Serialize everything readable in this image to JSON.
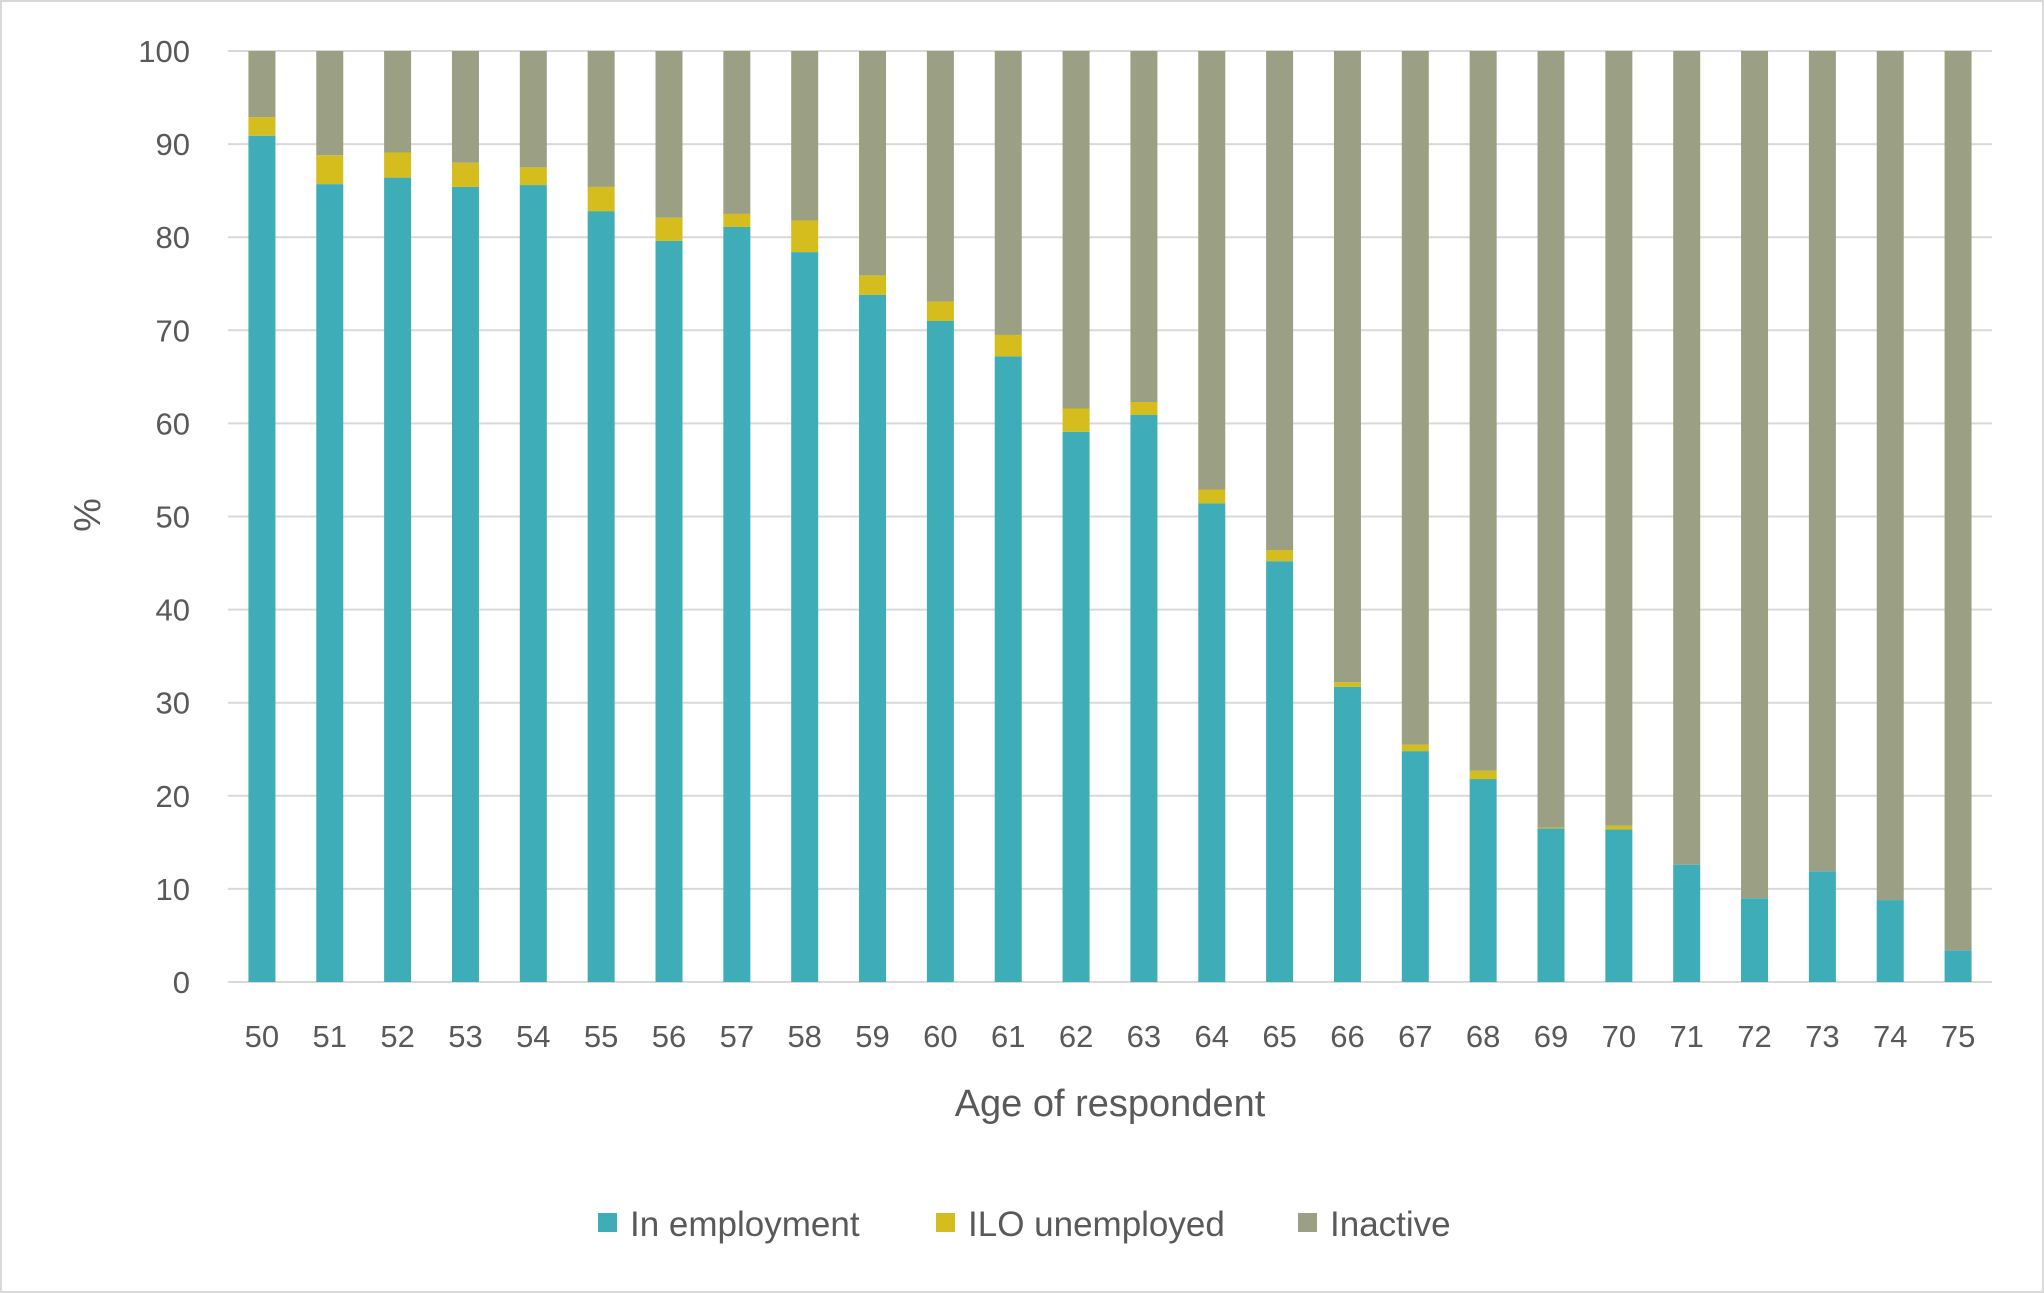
{
  "chart_data": {
    "type": "bar",
    "stacked": true,
    "xlabel": "Age of respondent",
    "ylabel": "%",
    "ylim": [
      0,
      100
    ],
    "yticks": [
      0,
      10,
      20,
      30,
      40,
      50,
      60,
      70,
      80,
      90,
      100
    ],
    "grid": true,
    "legend_position": "bottom",
    "categories": [
      "50",
      "51",
      "52",
      "53",
      "54",
      "55",
      "56",
      "57",
      "58",
      "59",
      "60",
      "61",
      "62",
      "63",
      "64",
      "65",
      "66",
      "67",
      "68",
      "69",
      "70",
      "71",
      "72",
      "73",
      "74",
      "75"
    ],
    "series": [
      {
        "name": "In employment",
        "color": "#3EADB8",
        "values": [
          90.9,
          85.7,
          86.4,
          85.4,
          85.6,
          82.8,
          79.6,
          81.1,
          78.4,
          73.8,
          71.0,
          67.2,
          59.1,
          60.9,
          51.4,
          45.2,
          31.7,
          24.8,
          21.8,
          16.5,
          16.4,
          12.6,
          9.0,
          11.9,
          8.8,
          3.4
        ]
      },
      {
        "name": "ILO unemployed",
        "color": "#D4BD1C",
        "values": [
          2.0,
          3.1,
          2.7,
          2.6,
          1.9,
          2.6,
          2.5,
          1.4,
          3.4,
          2.1,
          2.1,
          2.3,
          2.5,
          1.4,
          1.5,
          1.2,
          0.5,
          0.7,
          0.9,
          0.1,
          0.4,
          0,
          0,
          0,
          0,
          0
        ]
      },
      {
        "name": "Inactive",
        "color": "#9BA084",
        "values": [
          7.1,
          11.2,
          10.9,
          12.0,
          12.5,
          14.6,
          17.9,
          17.5,
          18.2,
          24.1,
          26.9,
          30.5,
          38.4,
          37.7,
          47.1,
          53.6,
          67.8,
          74.5,
          77.3,
          83.4,
          83.2,
          87.4,
          91.0,
          88.1,
          91.2,
          96.6
        ]
      }
    ]
  }
}
